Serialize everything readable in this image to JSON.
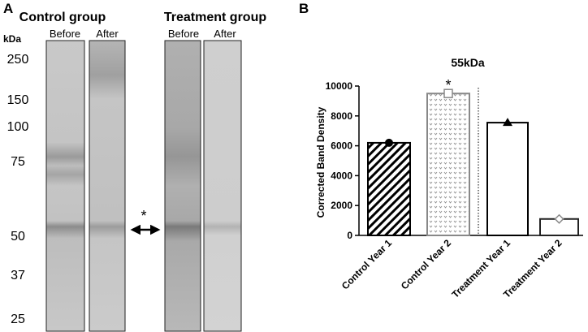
{
  "panel_a": {
    "panel_label": "A",
    "unit": "kDa",
    "groups": [
      {
        "name": "Control group",
        "lanes": [
          "Before",
          "After"
        ]
      },
      {
        "name": "Treatment group",
        "lanes": [
          "Before",
          "After"
        ]
      }
    ],
    "markers": [
      250,
      150,
      100,
      75,
      50,
      37,
      25
    ],
    "annotation": "*"
  },
  "chart_data": {
    "type": "bar",
    "panel_label": "B",
    "title": "55kDa",
    "y_label": "Corrected Band Density",
    "categories": [
      "Control Year 1",
      "Control Year 2",
      "Treatment Year 1",
      "Treatment Year 2"
    ],
    "values": [
      6200,
      9500,
      7550,
      1100
    ],
    "annotation": "*",
    "ylim": [
      0,
      10000
    ],
    "yticks": [
      0,
      2000,
      4000,
      6000,
      8000,
      10000
    ]
  }
}
